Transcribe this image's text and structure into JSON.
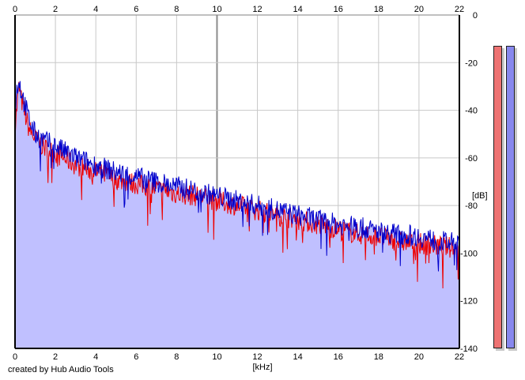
{
  "credit": "created by Hub Audio Tools",
  "meters": {
    "left_color": "#ee7373",
    "right_color": "#8888ee"
  },
  "chart_data": {
    "type": "line",
    "title": "",
    "xlabel": "[kHz]",
    "ylabel": "[dB]",
    "xlim": [
      0,
      22
    ],
    "ylim": [
      -140,
      0
    ],
    "x_ticks": [
      "0",
      "2",
      "4",
      "6",
      "8",
      "10",
      "12",
      "14",
      "16",
      "18",
      "20",
      "22"
    ],
    "y_ticks": [
      "0",
      "-20",
      "-40",
      "-60",
      "-80",
      "-100",
      "-120",
      "-140"
    ],
    "grid": true,
    "fill_color": "#c0c0ff",
    "series": [
      {
        "color": "#ee0000",
        "x": [
          0,
          0.1,
          0.2,
          0.3,
          0.5,
          0.7,
          1,
          1.5,
          2,
          3,
          4,
          5,
          6,
          7,
          8,
          9,
          10,
          11,
          12,
          13,
          14,
          15,
          16,
          17,
          18,
          19,
          20,
          21,
          22
        ],
        "y": [
          -48,
          -38,
          -30,
          -35,
          -42,
          -48,
          -52,
          -56,
          -58,
          -63,
          -66,
          -69,
          -71,
          -73,
          -75,
          -76,
          -78,
          -80,
          -82,
          -84,
          -86,
          -88,
          -90,
          -92,
          -93,
          -95,
          -96,
          -97,
          -98
        ]
      },
      {
        "color": "#0000cc",
        "x": [
          0,
          0.1,
          0.2,
          0.3,
          0.5,
          0.7,
          1,
          1.5,
          2,
          3,
          4,
          5,
          6,
          7,
          8,
          9,
          10,
          11,
          12,
          13,
          14,
          15,
          16,
          17,
          18,
          19,
          20,
          21,
          22
        ],
        "y": [
          -40,
          -31,
          -27,
          -32,
          -38,
          -44,
          -50,
          -53,
          -55,
          -60,
          -63,
          -66,
          -68,
          -70,
          -72,
          -74,
          -76,
          -78,
          -80,
          -82,
          -84,
          -86,
          -88,
          -89,
          -91,
          -92,
          -93,
          -95,
          -96
        ]
      }
    ]
  }
}
